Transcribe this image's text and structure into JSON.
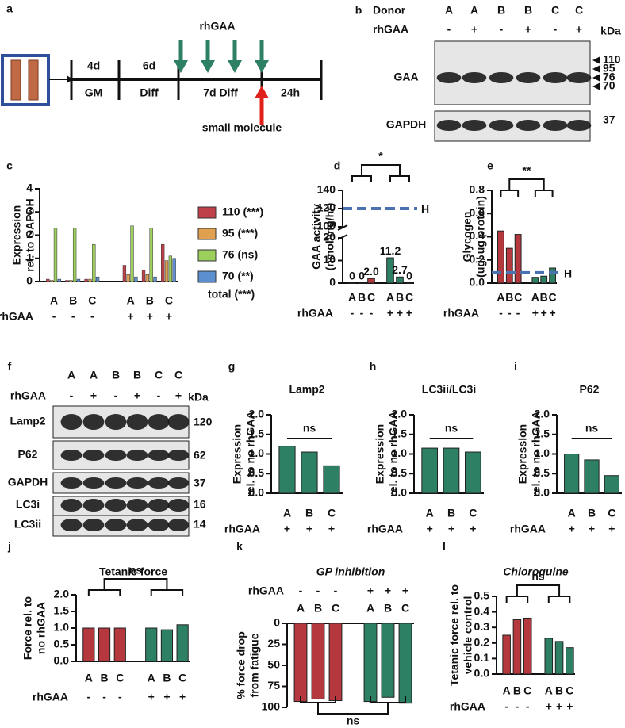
{
  "figure": {
    "schematic": {
      "label": "a",
      "arrow_label": "rhGAA",
      "top": [
        "4d",
        "6d"
      ],
      "bottom": [
        "GM",
        "Diff",
        "7d Diff",
        "24h"
      ],
      "compound": "small molecule"
    },
    "blot_b": {
      "label": "b",
      "donor_label": "Donor",
      "lanes": [
        "A",
        "A",
        "B",
        "B",
        "C",
        "C"
      ],
      "treatment_label": "rhGAA",
      "treatment": [
        "-",
        "+",
        "-",
        "+",
        "-",
        "+"
      ],
      "kda_label": "kDa",
      "rows": [
        {
          "name": "GAA",
          "kda": [
            110,
            95,
            76,
            70
          ]
        },
        {
          "name": "GAPDH",
          "kda": [
            37
          ]
        }
      ]
    },
    "blot_f": {
      "label": "f",
      "lanes": [
        "A",
        "A",
        "B",
        "B",
        "C",
        "C"
      ],
      "treatment_label": "rhGAA",
      "treatment": [
        "-",
        "+",
        "-",
        "+",
        "-",
        "+"
      ],
      "kda_label": "kDa",
      "rows": [
        {
          "name": "Lamp2",
          "kda": [
            120
          ]
        },
        {
          "name": "P62",
          "kda": [
            62
          ]
        },
        {
          "name": "GAPDH",
          "kda": [
            37
          ]
        },
        {
          "name": "LC3i",
          "kda": [
            16
          ]
        },
        {
          "name": "LC3ii",
          "kda": [
            14
          ]
        }
      ]
    }
  },
  "chart_data": [
    {
      "type": "grouped_bar",
      "label": "c",
      "y_label": [
        "Expression",
        "rel. to GAPDH"
      ],
      "categories": [
        "A",
        "B",
        "C",
        "A",
        "B",
        "C"
      ],
      "treatment_label": "rhGAA",
      "treatment": [
        "-",
        "-",
        "-",
        "+",
        "+",
        "+"
      ],
      "series": [
        {
          "name": "110 (***)",
          "color": "#c0404a",
          "values": [
            0.1,
            0.05,
            0.1,
            0.7,
            0.5,
            1.6
          ]
        },
        {
          "name": "95 (***)",
          "color": "#e0a050",
          "values": [
            0.05,
            0.05,
            0.1,
            0.3,
            0.3,
            0.9
          ]
        },
        {
          "name": "76 (ns)",
          "color": "#9ccf5c",
          "values": [
            2.3,
            2.3,
            1.6,
            2.4,
            2.3,
            1.1
          ]
        },
        {
          "name": "70 (**)",
          "color": "#5b8fd0",
          "values": [
            0.1,
            0.1,
            0.2,
            0.2,
            0.2,
            1.0
          ]
        }
      ],
      "legend_note": "total (***)",
      "ylim": [
        0,
        4
      ],
      "yticks": [
        0,
        1,
        2,
        3,
        4
      ]
    },
    {
      "type": "broken_bar",
      "label": "d",
      "y_label": [
        "GAA activity",
        "(nmol/mg/hr)"
      ],
      "categories": [
        "A",
        "B",
        "C",
        "A",
        "B",
        "C"
      ],
      "treatment_label": "rhGAA",
      "treatment": [
        "-",
        "-",
        "-",
        "+",
        "+",
        "+"
      ],
      "values": [
        0,
        0,
        2.0,
        11.2,
        2.7,
        0
      ],
      "value_labels": [
        "0",
        "0",
        "2.0",
        "11.2",
        "2.7",
        "0"
      ],
      "colors": [
        "#b5383f",
        "#b5383f",
        "#b5383f",
        "#2e8065",
        "#2e8065",
        "#2e8065"
      ],
      "ylim": [
        0,
        20
      ],
      "yticks": [
        0,
        10,
        20
      ],
      "ylim_upper": [
        100,
        140
      ],
      "yticks_upper": [
        100,
        120,
        140
      ],
      "hline": 120,
      "hline_label": "H",
      "annotation": "*"
    },
    {
      "type": "bar",
      "label": "e",
      "y_label": [
        "Glycogen",
        "(ug/ ug protein)"
      ],
      "categories": [
        "A",
        "B",
        "C",
        "A",
        "B",
        "C"
      ],
      "treatment_label": "rhGAA",
      "treatment": [
        "-",
        "-",
        "-",
        "+",
        "+",
        "+"
      ],
      "values": [
        0.45,
        0.3,
        0.42,
        0.05,
        0.06,
        0.13
      ],
      "colors": [
        "#b5383f",
        "#b5383f",
        "#b5383f",
        "#2e8065",
        "#2e8065",
        "#2e8065"
      ],
      "ylim": [
        0,
        0.8
      ],
      "yticks": [
        {
          "value": 0,
          "label": "0.0"
        },
        0.2,
        0.4,
        0.6,
        0.8
      ],
      "hline": 0.09,
      "hline_label": "H",
      "annotation": "**"
    },
    {
      "type": "bar",
      "label": "g",
      "title": "Lamp2",
      "y_label": [
        "Expression",
        "rel. to no rhGAA"
      ],
      "categories": [
        "A",
        "B",
        "C"
      ],
      "treatment_label": "rhGAA",
      "treatment": [
        "+",
        "+",
        "+"
      ],
      "values": [
        1.2,
        1.05,
        0.7
      ],
      "colors": [
        "#2e8065",
        "#2e8065",
        "#2e8065"
      ],
      "ylim": [
        0,
        2
      ],
      "yticks": [
        {
          "value": 0,
          "label": "0.0"
        },
        0.5,
        {
          "value": 1,
          "label": "1.0"
        },
        1.5,
        {
          "value": 2,
          "label": "2.0"
        }
      ],
      "annotation": "ns"
    },
    {
      "type": "bar",
      "label": "h",
      "title": "LC3ii/LC3i",
      "y_label": [
        "Expression",
        "rel. to no rhGAA"
      ],
      "categories": [
        "A",
        "B",
        "C"
      ],
      "treatment_label": "rhGAA",
      "treatment": [
        "+",
        "+",
        "+"
      ],
      "values": [
        1.15,
        1.15,
        1.05
      ],
      "colors": [
        "#2e8065",
        "#2e8065",
        "#2e8065"
      ],
      "ylim": [
        0,
        2
      ],
      "yticks": [
        {
          "value": 0,
          "label": "0.0"
        },
        0.5,
        {
          "value": 1,
          "label": "1.0"
        },
        1.5,
        {
          "value": 2,
          "label": "2.0"
        }
      ],
      "annotation": "ns"
    },
    {
      "type": "bar",
      "label": "i",
      "title": "P62",
      "y_label": [
        "Expression",
        "rel. to no rhGAA"
      ],
      "categories": [
        "A",
        "B",
        "C"
      ],
      "treatment_label": "rhGAA",
      "treatment": [
        "+",
        "+",
        "+"
      ],
      "values": [
        1.0,
        0.85,
        0.45
      ],
      "colors": [
        "#2e8065",
        "#2e8065",
        "#2e8065"
      ],
      "ylim": [
        0,
        2
      ],
      "yticks": [
        {
          "value": 0,
          "label": "0.0"
        },
        0.5,
        {
          "value": 1,
          "label": "1.0"
        },
        1.5,
        {
          "value": 2,
          "label": "2.0"
        }
      ],
      "annotation": "ns"
    },
    {
      "type": "bar",
      "label": "j",
      "title": "Tetanic force",
      "y_label": [
        "Force rel. to",
        "no rhGAA"
      ],
      "categories": [
        "A",
        "B",
        "C",
        "A",
        "B",
        "C"
      ],
      "treatment_label": "rhGAA",
      "treatment": [
        "-",
        "-",
        "-",
        "+",
        "+",
        "+"
      ],
      "values": [
        1.0,
        1.0,
        1.0,
        1.0,
        0.95,
        1.1
      ],
      "colors": [
        "#b5383f",
        "#b5383f",
        "#b5383f",
        "#2e8065",
        "#2e8065",
        "#2e8065"
      ],
      "ylim": [
        0,
        2
      ],
      "yticks": [
        {
          "value": 0,
          "label": "0.0"
        },
        0.5,
        {
          "value": 1,
          "label": "1.0"
        },
        1.5,
        {
          "value": 2,
          "label": "2.0"
        }
      ],
      "annotation": "ns"
    },
    {
      "type": "bar",
      "label": "k",
      "title": "GP inhibition",
      "y_label": [
        "% force drop",
        "from fatigue"
      ],
      "categories": [
        "A",
        "B",
        "C",
        "A",
        "B",
        "C"
      ],
      "treatment_label": "rhGAA",
      "treatment": [
        "-",
        "-",
        "-",
        "+",
        "+",
        "+"
      ],
      "values": [
        93,
        90,
        92,
        93,
        88,
        95
      ],
      "colors": [
        "#b5383f",
        "#b5383f",
        "#b5383f",
        "#2e8065",
        "#2e8065",
        "#2e8065"
      ],
      "ylim": [
        0,
        100
      ],
      "yticks": [
        0,
        25,
        50,
        75,
        100
      ],
      "invert_y": true,
      "annotation": "ns"
    },
    {
      "type": "bar",
      "label": "l",
      "title": "Chloroquine",
      "y_label": [
        "Tetanic force rel. to",
        "vehicle control"
      ],
      "categories": [
        "A",
        "B",
        "C",
        "A",
        "B",
        "C"
      ],
      "treatment_label": "rhGAA",
      "treatment": [
        "-",
        "-",
        "-",
        "+",
        "+",
        "+"
      ],
      "values": [
        0.25,
        0.35,
        0.36,
        0.23,
        0.21,
        0.17
      ],
      "colors": [
        "#b5383f",
        "#b5383f",
        "#b5383f",
        "#2e8065",
        "#2e8065",
        "#2e8065"
      ],
      "ylim": [
        0,
        0.5
      ],
      "yticks": [
        {
          "value": 0,
          "label": "0.0"
        },
        0.1,
        0.2,
        0.3,
        0.4,
        0.5
      ],
      "annotation": "ns"
    }
  ]
}
